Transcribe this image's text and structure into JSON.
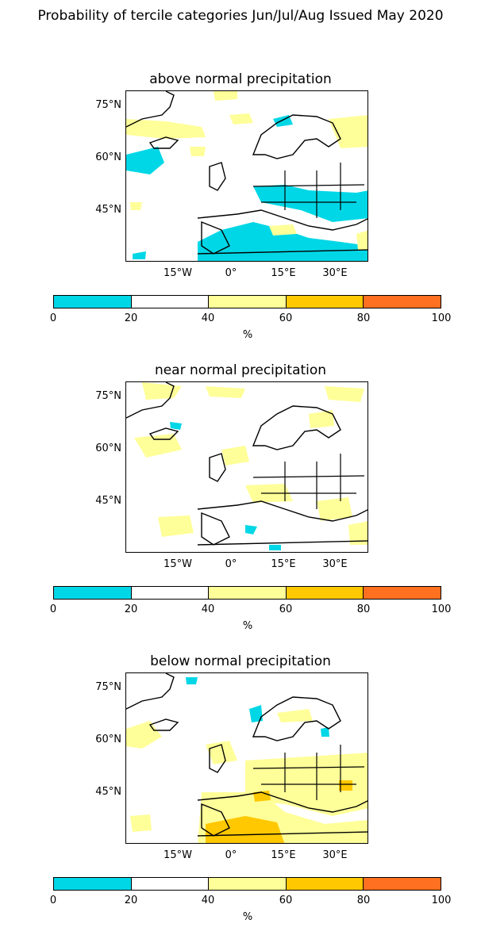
{
  "title": "Probability of tercile categories Jun/Jul/Aug Issued May 2020",
  "lat_labels": [
    "75°N",
    "60°N",
    "45°N"
  ],
  "lon_labels": [
    "15°W",
    "0°",
    "15°E",
    "30°E"
  ],
  "colorbar": {
    "ticks": [
      "0",
      "20",
      "40",
      "60",
      "80",
      "100"
    ],
    "unit": "%",
    "colors": [
      "#00d7e6",
      "#ffffff",
      "#ffff99",
      "#ffc800",
      "#ff7020"
    ]
  },
  "panels": [
    {
      "key": "above",
      "title": "above normal precipitation",
      "dominant": "#00d7e6"
    },
    {
      "key": "near",
      "title": "near normal precipitation",
      "dominant": "#ffff99"
    },
    {
      "key": "below",
      "title": "below normal precipitation",
      "dominant": "#ffff99"
    }
  ]
}
